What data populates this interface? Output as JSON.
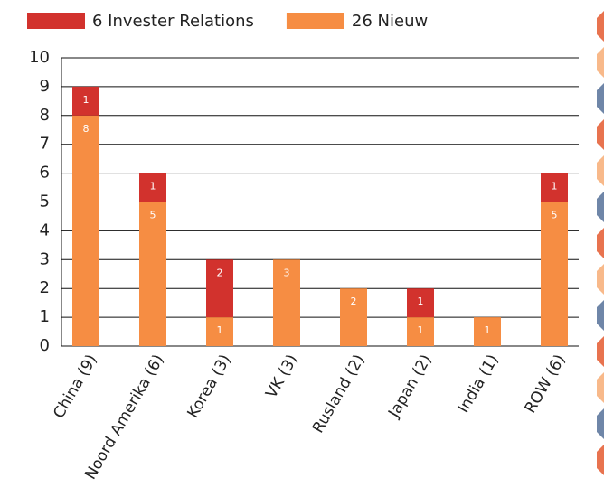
{
  "chart_data": {
    "type": "stacked_bar",
    "categories": [
      "China (9)",
      "Noord Amerika (6)",
      "Korea (3)",
      "VK (3)",
      "Rusland (2)",
      "Japan (2)",
      "India (1)",
      "ROW (6)"
    ],
    "series": [
      {
        "name": "26 Nieuw",
        "color": "#f68d43",
        "values": [
          8,
          5,
          1,
          3,
          2,
          1,
          1,
          5
        ]
      },
      {
        "name": "6 Invester Relations",
        "color": "#d2322d",
        "values": [
          1,
          1,
          2,
          0,
          0,
          1,
          0,
          1
        ]
      }
    ],
    "legend_order": [
      1,
      0
    ],
    "ylim": [
      0,
      10
    ],
    "yticks": [
      0,
      1,
      2,
      3,
      4,
      5,
      6,
      7,
      8,
      9,
      10
    ],
    "grid": true
  }
}
